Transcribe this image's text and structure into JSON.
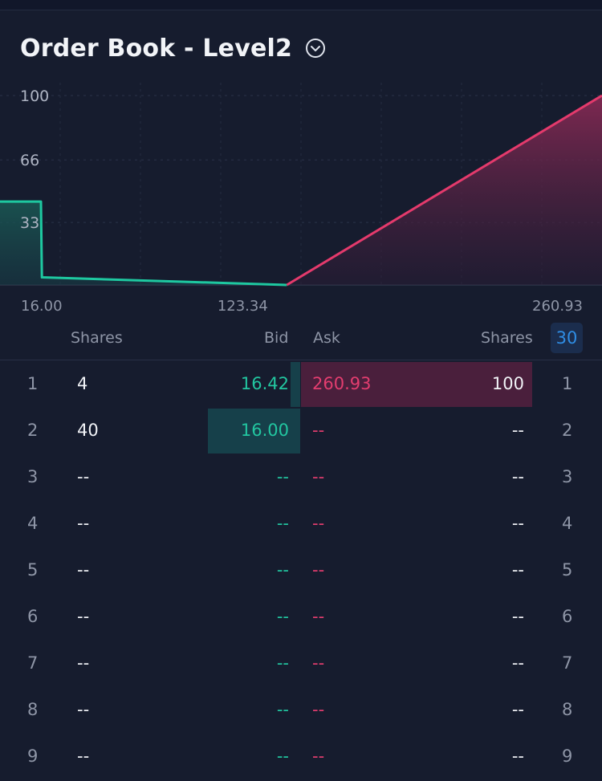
{
  "header": {
    "title": "Order Book - Level2",
    "toggle_icon": "chevron-down-circle-icon"
  },
  "chart_data": {
    "type": "area",
    "title": "",
    "xlabel": "",
    "ylabel": "",
    "ylim": [
      0,
      100
    ],
    "xlim": [
      16.0,
      260.93
    ],
    "y_ticks": [
      "100",
      "66",
      "33"
    ],
    "x_ticks": [
      "16.00",
      "123.34",
      "260.93"
    ],
    "grid": true,
    "series": [
      {
        "side": "bid",
        "color": "#1ec8a0",
        "x": [
          -5,
          16.0,
          16.42,
          123.34
        ],
        "y": [
          44,
          44,
          4,
          0
        ]
      },
      {
        "side": "ask",
        "color": "#e43a6c",
        "x": [
          123.34,
          260.93
        ],
        "y": [
          0,
          100
        ]
      }
    ]
  },
  "table": {
    "headers": {
      "bid_shares": "Shares",
      "bid": "Bid",
      "ask": "Ask",
      "ask_shares": "Shares",
      "depth": "30"
    },
    "rows": [
      {
        "left_index": "1",
        "bid_shares": "4",
        "bid": "16.42",
        "ask": "260.93",
        "ask_shares": "100",
        "right_index": "1",
        "bid_fill": 0.1,
        "ask_fill": 1.0
      },
      {
        "left_index": "2",
        "bid_shares": "40",
        "bid": "16.00",
        "ask": "--",
        "ask_shares": "--",
        "right_index": "2",
        "bid_fill": 1.0,
        "ask_fill": 0
      },
      {
        "left_index": "3",
        "bid_shares": "--",
        "bid": "--",
        "ask": "--",
        "ask_shares": "--",
        "right_index": "3",
        "bid_fill": 0,
        "ask_fill": 0
      },
      {
        "left_index": "4",
        "bid_shares": "--",
        "bid": "--",
        "ask": "--",
        "ask_shares": "--",
        "right_index": "4",
        "bid_fill": 0,
        "ask_fill": 0
      },
      {
        "left_index": "5",
        "bid_shares": "--",
        "bid": "--",
        "ask": "--",
        "ask_shares": "--",
        "right_index": "5",
        "bid_fill": 0,
        "ask_fill": 0
      },
      {
        "left_index": "6",
        "bid_shares": "--",
        "bid": "--",
        "ask": "--",
        "ask_shares": "--",
        "right_index": "6",
        "bid_fill": 0,
        "ask_fill": 0
      },
      {
        "left_index": "7",
        "bid_shares": "--",
        "bid": "--",
        "ask": "--",
        "ask_shares": "--",
        "right_index": "7",
        "bid_fill": 0,
        "ask_fill": 0
      },
      {
        "left_index": "8",
        "bid_shares": "--",
        "bid": "--",
        "ask": "--",
        "ask_shares": "--",
        "right_index": "8",
        "bid_fill": 0,
        "ask_fill": 0
      },
      {
        "left_index": "9",
        "bid_shares": "--",
        "bid": "--",
        "ask": "--",
        "ask_shares": "--",
        "right_index": "9",
        "bid_fill": 0,
        "ask_fill": 0
      }
    ]
  }
}
